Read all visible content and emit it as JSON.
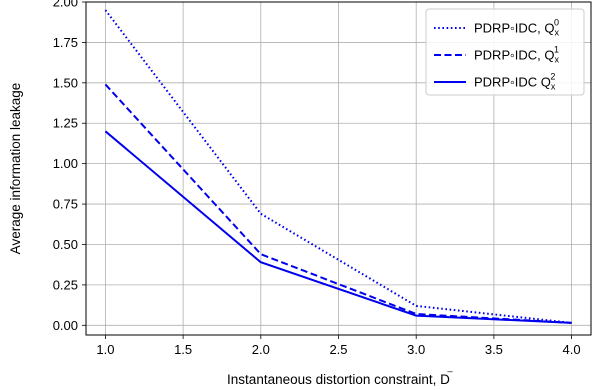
{
  "chart_data": {
    "type": "line",
    "title": "",
    "xlabel": "Instantaneous distortion constraint, D",
    "xlabel_sup": "̅",
    "ylabel": "Average information leakage",
    "xlim": [
      0.875,
      4.125
    ],
    "ylim": [
      -0.06,
      2.0
    ],
    "xticks": [
      1.0,
      1.5,
      2.0,
      2.5,
      3.0,
      3.5,
      4.0
    ],
    "xtick_labels": [
      "1.0",
      "1.5",
      "2.0",
      "2.5",
      "3.0",
      "3.5",
      "4.0"
    ],
    "yticks": [
      0.0,
      0.25,
      0.5,
      0.75,
      1.0,
      1.25,
      1.5,
      1.75,
      2.0
    ],
    "ytick_labels": [
      "0.00",
      "0.25",
      "0.50",
      "0.75",
      "1.00",
      "1.25",
      "1.50",
      "1.75",
      "2.00"
    ],
    "grid": true,
    "legend_position": "top-right",
    "color": "#0000ee",
    "x": [
      1.0,
      2.0,
      3.0,
      4.0
    ],
    "series": [
      {
        "name": "PDRP◦IDC, Q",
        "sub": "x",
        "sup": "0",
        "line_style": "dotted",
        "values": [
          1.95,
          0.69,
          0.12,
          0.015
        ]
      },
      {
        "name": "PDRP◦IDC, Q",
        "sub": "x",
        "sup": "1",
        "line_style": "dashed",
        "values": [
          1.49,
          0.44,
          0.07,
          0.015
        ]
      },
      {
        "name": "PDRP◦IDC Q",
        "sub": "x",
        "sup": "2",
        "line_style": "solid",
        "values": [
          1.2,
          0.39,
          0.06,
          0.015
        ]
      }
    ]
  }
}
